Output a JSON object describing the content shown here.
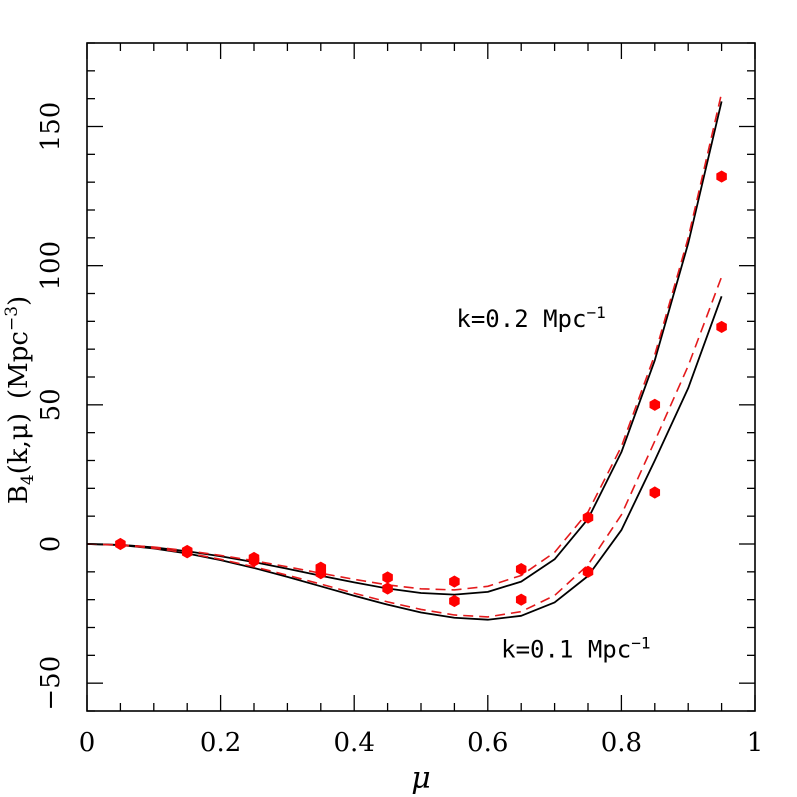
{
  "chart_data": {
    "type": "line",
    "xlabel": "μ",
    "ylabel": {
      "prefix": "B",
      "subscript": "4",
      "args": "(k,μ)",
      "units_prefix": "(Mpc",
      "units_exp": "−3",
      "units_suffix": ")"
    },
    "xlim": [
      0,
      1
    ],
    "ylim": [
      -60,
      180
    ],
    "x_ticks": [
      {
        "value": 0,
        "label": "0"
      },
      {
        "value": 0.2,
        "label": "0.2"
      },
      {
        "value": 0.4,
        "label": "0.4"
      },
      {
        "value": 0.6,
        "label": "0.6"
      },
      {
        "value": 0.8,
        "label": "0.8"
      },
      {
        "value": 1,
        "label": "1"
      }
    ],
    "y_ticks": [
      {
        "value": -50,
        "label": "−50"
      },
      {
        "value": 0,
        "label": "0"
      },
      {
        "value": 50,
        "label": "50"
      },
      {
        "value": 100,
        "label": "100"
      },
      {
        "value": 150,
        "label": "150"
      }
    ],
    "grid": false,
    "annotations": [
      {
        "id": "k02",
        "prefix": "k=0.2 Mpc",
        "exp": "−1"
      },
      {
        "id": "k01",
        "prefix": "k=0.1 Mpc",
        "exp": "−1"
      }
    ],
    "series": [
      {
        "kind": "solid",
        "color": "#000000",
        "x": [
          0.0,
          0.05,
          0.1,
          0.15,
          0.2,
          0.25,
          0.3,
          0.35,
          0.4,
          0.45,
          0.5,
          0.55,
          0.6,
          0.65,
          0.7,
          0.75,
          0.8,
          0.85,
          0.9,
          0.95
        ],
        "y": [
          0,
          -0.3,
          -1.2,
          -2.6,
          -4.4,
          -6.5,
          -8.9,
          -11.4,
          -13.8,
          -16.0,
          -17.6,
          -18.2,
          -17.2,
          -13.5,
          -5.5,
          9.0,
          33.0,
          66.0,
          108.0,
          159.0
        ]
      },
      {
        "kind": "dashed",
        "color": "#e41a1c",
        "x": [
          0.0,
          0.05,
          0.1,
          0.15,
          0.2,
          0.25,
          0.3,
          0.35,
          0.4,
          0.45,
          0.5,
          0.55,
          0.6,
          0.65,
          0.7,
          0.75,
          0.8,
          0.85,
          0.9,
          0.95
        ],
        "y": [
          0,
          -0.3,
          -1.1,
          -2.4,
          -4.1,
          -6.0,
          -8.2,
          -10.5,
          -12.7,
          -14.7,
          -16.1,
          -16.5,
          -15.2,
          -11.3,
          -3.0,
          11.5,
          35.0,
          68.0,
          110.0,
          162.0
        ]
      },
      {
        "kind": "solid",
        "color": "#000000",
        "x": [
          0.0,
          0.05,
          0.1,
          0.15,
          0.2,
          0.25,
          0.3,
          0.35,
          0.4,
          0.45,
          0.5,
          0.55,
          0.6,
          0.65,
          0.7,
          0.75,
          0.8,
          0.85,
          0.9,
          0.95
        ],
        "y": [
          0,
          -0.4,
          -1.6,
          -3.4,
          -5.8,
          -8.6,
          -11.8,
          -15.2,
          -18.6,
          -21.8,
          -24.6,
          -26.5,
          -27.2,
          -25.8,
          -21.0,
          -11.5,
          5.0,
          30.0,
          56.0,
          89.0
        ]
      },
      {
        "kind": "dashed",
        "color": "#e41a1c",
        "x": [
          0.0,
          0.05,
          0.1,
          0.15,
          0.2,
          0.25,
          0.3,
          0.35,
          0.4,
          0.45,
          0.5,
          0.55,
          0.6,
          0.65,
          0.7,
          0.75,
          0.8,
          0.85,
          0.9,
          0.95
        ],
        "y": [
          0,
          -0.4,
          -1.5,
          -3.2,
          -5.5,
          -8.2,
          -11.2,
          -14.4,
          -17.7,
          -20.8,
          -23.5,
          -25.5,
          -26.2,
          -24.3,
          -18.5,
          -7.5,
          10.5,
          37.0,
          64.0,
          96.0
        ]
      }
    ],
    "points": {
      "color": "#ff0000",
      "x": [
        0.05,
        0.15,
        0.25,
        0.35,
        0.45,
        0.55,
        0.65,
        0.75,
        0.85,
        0.95,
        0.15,
        0.25,
        0.35,
        0.45,
        0.55,
        0.65,
        0.75,
        0.85,
        0.95
      ],
      "y": [
        0,
        -2.5,
        -5.0,
        -8.5,
        -12.0,
        -13.5,
        -9.0,
        9.5,
        50.0,
        132.0,
        -3.0,
        -6.0,
        -10.5,
        -16.0,
        -20.5,
        -20.0,
        -10.0,
        18.5,
        78.0
      ]
    }
  }
}
